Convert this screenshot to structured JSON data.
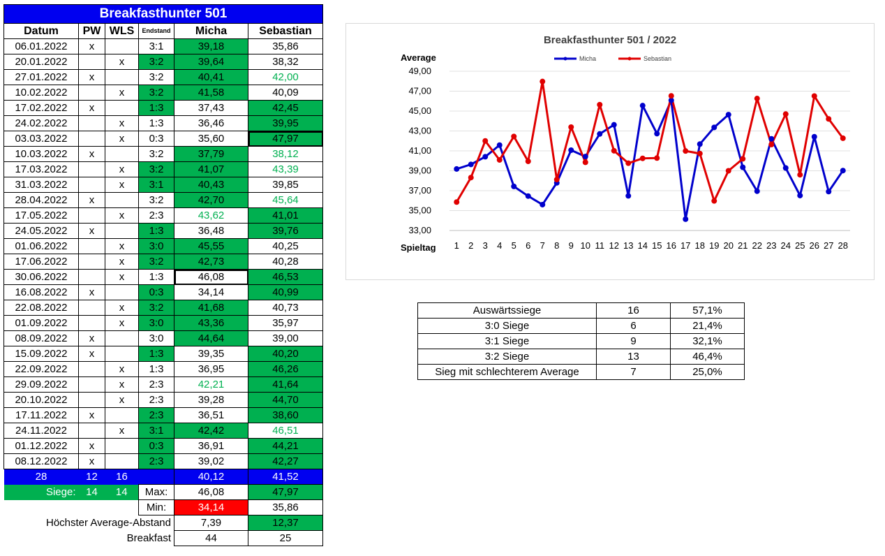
{
  "sheet": {
    "title": "Breakfasthunter 501",
    "headers": {
      "datum": "Datum",
      "pw": "PW",
      "wls": "WLS",
      "endstand": "Endstand",
      "micha": "Micha",
      "sebastian": "Sebastian"
    },
    "rows": [
      {
        "datum": "06.01.2022",
        "pw": "x",
        "wls": "",
        "end": "3:1",
        "m": "39,18",
        "s": "35,86",
        "eg": false,
        "mc": "g",
        "sc": ""
      },
      {
        "datum": "20.01.2022",
        "pw": "",
        "wls": "x",
        "end": "3:2",
        "m": "39,64",
        "s": "38,32",
        "eg": true,
        "mc": "g",
        "sc": ""
      },
      {
        "datum": "27.01.2022",
        "pw": "x",
        "wls": "",
        "end": "3:2",
        "m": "40,41",
        "s": "42,00",
        "eg": false,
        "mc": "g",
        "sc": "gt"
      },
      {
        "datum": "10.02.2022",
        "pw": "",
        "wls": "x",
        "end": "3:2",
        "m": "41,58",
        "s": "40,09",
        "eg": true,
        "mc": "g",
        "sc": ""
      },
      {
        "datum": "17.02.2022",
        "pw": "x",
        "wls": "",
        "end": "1:3",
        "m": "37,43",
        "s": "42,45",
        "eg": true,
        "mc": "",
        "sc": "g"
      },
      {
        "datum": "24.02.2022",
        "pw": "",
        "wls": "x",
        "end": "1:3",
        "m": "36,46",
        "s": "39,95",
        "eg": false,
        "mc": "",
        "sc": "g"
      },
      {
        "datum": "03.03.2022",
        "pw": "",
        "wls": "x",
        "end": "0:3",
        "m": "35,60",
        "s": "47,97",
        "eg": false,
        "mc": "",
        "sc": "g thick"
      },
      {
        "datum": "10.03.2022",
        "pw": "x",
        "wls": "",
        "end": "3:2",
        "m": "37,79",
        "s": "38,12",
        "eg": false,
        "mc": "g",
        "sc": "gt"
      },
      {
        "datum": "17.03.2022",
        "pw": "",
        "wls": "x",
        "end": "3:2",
        "m": "41,07",
        "s": "43,39",
        "eg": true,
        "mc": "g",
        "sc": "gt"
      },
      {
        "datum": "31.03.2022",
        "pw": "",
        "wls": "x",
        "end": "3:1",
        "m": "40,43",
        "s": "39,85",
        "eg": true,
        "mc": "g",
        "sc": ""
      },
      {
        "datum": "28.04.2022",
        "pw": "x",
        "wls": "",
        "end": "3:2",
        "m": "42,70",
        "s": "45,64",
        "eg": false,
        "mc": "g",
        "sc": "gt"
      },
      {
        "datum": "17.05.2022",
        "pw": "",
        "wls": "x",
        "end": "2:3",
        "m": "43,62",
        "s": "41,01",
        "eg": false,
        "mc": "gt",
        "sc": "g"
      },
      {
        "datum": "24.05.2022",
        "pw": "x",
        "wls": "",
        "end": "1:3",
        "m": "36,48",
        "s": "39,76",
        "eg": true,
        "mc": "",
        "sc": "g"
      },
      {
        "datum": "01.06.2022",
        "pw": "",
        "wls": "x",
        "end": "3:0",
        "m": "45,55",
        "s": "40,25",
        "eg": true,
        "mc": "g",
        "sc": ""
      },
      {
        "datum": "17.06.2022",
        "pw": "",
        "wls": "x",
        "end": "3:2",
        "m": "42,73",
        "s": "40,28",
        "eg": true,
        "mc": "g",
        "sc": ""
      },
      {
        "datum": "30.06.2022",
        "pw": "",
        "wls": "x",
        "end": "1:3",
        "m": "46,08",
        "s": "46,53",
        "eg": false,
        "mc": "thick",
        "sc": "g"
      },
      {
        "datum": "16.08.2022",
        "pw": "x",
        "wls": "",
        "end": "0:3",
        "m": "34,14",
        "s": "40,99",
        "eg": true,
        "mc": "",
        "sc": "g"
      },
      {
        "datum": "22.08.2022",
        "pw": "",
        "wls": "x",
        "end": "3:2",
        "m": "41,68",
        "s": "40,73",
        "eg": true,
        "mc": "g",
        "sc": ""
      },
      {
        "datum": "01.09.2022",
        "pw": "",
        "wls": "x",
        "end": "3:0",
        "m": "43,36",
        "s": "35,97",
        "eg": true,
        "mc": "g",
        "sc": ""
      },
      {
        "datum": "08.09.2022",
        "pw": "x",
        "wls": "",
        "end": "3:0",
        "m": "44,64",
        "s": "39,00",
        "eg": false,
        "mc": "g",
        "sc": ""
      },
      {
        "datum": "15.09.2022",
        "pw": "x",
        "wls": "",
        "end": "1:3",
        "m": "39,35",
        "s": "40,20",
        "eg": true,
        "mc": "",
        "sc": "g"
      },
      {
        "datum": "22.09.2022",
        "pw": "",
        "wls": "x",
        "end": "1:3",
        "m": "36,95",
        "s": "46,26",
        "eg": false,
        "mc": "",
        "sc": "g"
      },
      {
        "datum": "29.09.2022",
        "pw": "",
        "wls": "x",
        "end": "2:3",
        "m": "42,21",
        "s": "41,64",
        "eg": false,
        "mc": "gt",
        "sc": "g"
      },
      {
        "datum": "20.10.2022",
        "pw": "",
        "wls": "x",
        "end": "2:3",
        "m": "39,28",
        "s": "44,70",
        "eg": false,
        "mc": "",
        "sc": "g"
      },
      {
        "datum": "17.11.2022",
        "pw": "x",
        "wls": "",
        "end": "2:3",
        "m": "36,51",
        "s": "38,60",
        "eg": true,
        "mc": "",
        "sc": "g"
      },
      {
        "datum": "24.11.2022",
        "pw": "",
        "wls": "x",
        "end": "3:1",
        "m": "42,42",
        "s": "46,51",
        "eg": true,
        "mc": "g",
        "sc": "gt"
      },
      {
        "datum": "01.12.2022",
        "pw": "x",
        "wls": "",
        "end": "0:3",
        "m": "36,91",
        "s": "44,21",
        "eg": true,
        "mc": "",
        "sc": "g"
      },
      {
        "datum": "08.12.2022",
        "pw": "x",
        "wls": "",
        "end": "2:3",
        "m": "39,02",
        "s": "42,27",
        "eg": true,
        "mc": "",
        "sc": "g"
      }
    ],
    "summary": {
      "games": "28",
      "pw": "12",
      "wls": "16",
      "micha_avg": "40,12",
      "seb_avg": "41,52"
    },
    "siege": {
      "label": "Siege:",
      "pw": "14",
      "wls": "14",
      "max_label": "Max:",
      "max_micha": "46,08",
      "max_seb": "47,97"
    },
    "min": {
      "label": "Min:",
      "micha": "34,14",
      "seb": "35,86"
    },
    "abstand": {
      "label": "Höchster Average-Abstand",
      "micha": "7,39",
      "seb": "12,37"
    },
    "breakfast": {
      "label": "Breakfast",
      "micha": "44",
      "seb": "25"
    }
  },
  "chart_data": {
    "type": "line",
    "title": "Breakfasthunter 501 / 2022",
    "ylabel": "Average",
    "xlabel": "Spieltag",
    "ylim": [
      33,
      49
    ],
    "yticks": [
      "33,00",
      "35,00",
      "37,00",
      "39,00",
      "41,00",
      "43,00",
      "45,00",
      "47,00",
      "49,00"
    ],
    "x": [
      1,
      2,
      3,
      4,
      5,
      6,
      7,
      8,
      9,
      10,
      11,
      12,
      13,
      14,
      15,
      16,
      17,
      18,
      19,
      20,
      21,
      22,
      23,
      24,
      25,
      26,
      27,
      28
    ],
    "legend_position": "top",
    "grid": true,
    "series": [
      {
        "name": "Micha",
        "color": "#0000cc",
        "values": [
          39.18,
          39.64,
          40.41,
          41.58,
          37.43,
          36.46,
          35.6,
          37.79,
          41.07,
          40.43,
          42.7,
          43.62,
          36.48,
          45.55,
          42.73,
          46.08,
          34.14,
          41.68,
          43.36,
          44.64,
          39.35,
          36.95,
          42.21,
          39.28,
          36.51,
          42.42,
          36.91,
          39.02
        ]
      },
      {
        "name": "Sebastian",
        "color": "#e00000",
        "values": [
          35.86,
          38.32,
          42.0,
          40.09,
          42.45,
          39.95,
          47.97,
          38.12,
          43.39,
          39.85,
          45.64,
          41.01,
          39.76,
          40.25,
          40.28,
          46.53,
          40.99,
          40.73,
          35.97,
          39.0,
          40.2,
          46.26,
          41.64,
          44.7,
          38.6,
          46.51,
          44.21,
          42.27
        ]
      }
    ]
  },
  "stats": [
    {
      "label": "Auswärtssiege",
      "count": "16",
      "pct": "57,1%"
    },
    {
      "label": "3:0 Siege",
      "count": "6",
      "pct": "21,4%"
    },
    {
      "label": "3:1 Siege",
      "count": "9",
      "pct": "32,1%"
    },
    {
      "label": "3:2 Siege",
      "count": "13",
      "pct": "46,4%"
    },
    {
      "label": "Sieg mit schlechterem Average",
      "count": "7",
      "pct": "25,0%"
    }
  ],
  "colors": {
    "blue": "#0000f0",
    "green": "#00b050",
    "red": "#ff0000"
  }
}
